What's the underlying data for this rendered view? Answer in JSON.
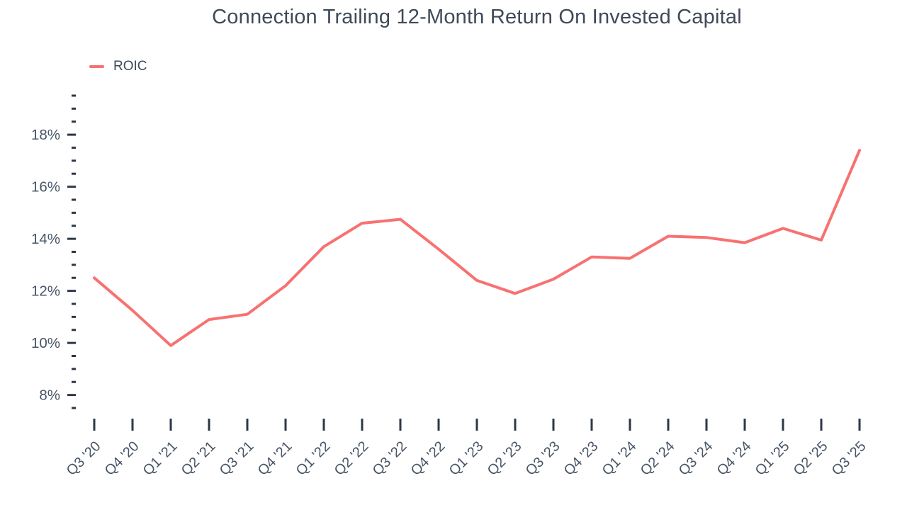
{
  "chart_data": {
    "type": "line",
    "title": "Connection Trailing 12-Month Return On Invested Capital",
    "categories": [
      "Q3 '20",
      "Q4 '20",
      "Q1 '21",
      "Q2 '21",
      "Q3 '21",
      "Q4 '21",
      "Q1 '22",
      "Q2 '22",
      "Q3 '22",
      "Q4 '22",
      "Q1 '23",
      "Q2 '23",
      "Q3 '23",
      "Q4 '23",
      "Q1 '24",
      "Q2 '24",
      "Q3 '24",
      "Q4 '24",
      "Q1 '25",
      "Q2 '25",
      "Q3 '25"
    ],
    "series": [
      {
        "name": "ROIC",
        "color": "#F87171",
        "values": [
          12.5,
          11.25,
          9.9,
          10.9,
          11.1,
          12.2,
          13.7,
          14.6,
          14.75,
          13.6,
          12.4,
          11.9,
          12.45,
          13.3,
          13.25,
          14.1,
          14.05,
          13.85,
          14.4,
          13.95,
          17.4
        ]
      }
    ],
    "xlabel": "",
    "ylabel": "",
    "y_axis": {
      "unit": "%",
      "major_ticks": [
        8,
        10,
        12,
        14,
        16,
        18
      ],
      "minor_tick_step": 0.5,
      "min": 7.5,
      "max": 19.5
    },
    "ylim": [
      7.5,
      19.5
    ],
    "grid": false,
    "legend_position": "top-left"
  },
  "legend": {
    "items": [
      {
        "label": "ROIC",
        "color": "#F87171"
      }
    ]
  },
  "colors": {
    "accent": "#F87171",
    "title_text": "#3E4A59",
    "axis_text": "#475566",
    "tick": "#2D3748",
    "background": "#FFFFFF"
  }
}
